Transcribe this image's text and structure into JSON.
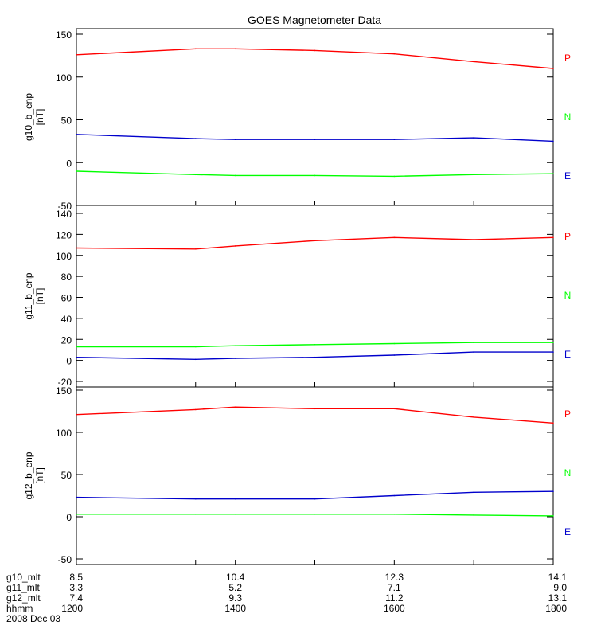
{
  "chart_data": {
    "type": "line",
    "title": "GOES Magnetometer Data",
    "time_hhmm": [
      1200,
      1330,
      1400,
      1500,
      1600,
      1700,
      1800
    ],
    "panels": [
      {
        "ylabel": "g10_b_enp",
        "yunit": "[nT]",
        "ylim": [
          -50,
          150
        ],
        "yticks": [
          -50,
          0,
          50,
          100,
          150
        ],
        "series": [
          {
            "name": "P",
            "color": "#ff0000",
            "values": [
              126,
              133,
              133,
              131,
              127,
              118,
              110
            ]
          },
          {
            "name": "N",
            "color": "#00ff00",
            "values": [
              -10,
              -14,
              -15,
              -15,
              -16,
              -14,
              -13
            ]
          },
          {
            "name": "E",
            "color": "#0000cc",
            "values": [
              33,
              28,
              27,
              27,
              27,
              29,
              25
            ]
          }
        ]
      },
      {
        "ylabel": "g11_b_enp",
        "yunit": "[nT]",
        "ylim": [
          -20,
          140
        ],
        "yticks": [
          -20,
          0,
          20,
          40,
          60,
          80,
          100,
          120,
          140
        ],
        "series": [
          {
            "name": "P",
            "color": "#ff0000",
            "values": [
              107,
              106,
              109,
              114,
              117,
              115,
              117
            ]
          },
          {
            "name": "N",
            "color": "#00ff00",
            "values": [
              13,
              13,
              14,
              15,
              16,
              17,
              17
            ]
          },
          {
            "name": "E",
            "color": "#0000cc",
            "values": [
              3,
              1,
              2,
              3,
              5,
              8,
              8
            ]
          }
        ]
      },
      {
        "ylabel": "g12_b_enp",
        "yunit": "[nT]",
        "ylim": [
          -50,
          150
        ],
        "yticks": [
          -50,
          0,
          50,
          100,
          150
        ],
        "series": [
          {
            "name": "P",
            "color": "#ff0000",
            "values": [
              121,
              127,
              130,
              128,
              128,
              118,
              111
            ]
          },
          {
            "name": "N",
            "color": "#00ff00",
            "values": [
              3,
              3,
              3,
              3,
              3,
              2,
              1
            ]
          },
          {
            "name": "E",
            "color": "#0000cc",
            "values": [
              23,
              21,
              21,
              21,
              25,
              29,
              30
            ]
          }
        ]
      }
    ],
    "series_labels": [
      {
        "text": "P",
        "color": "#ff0000"
      },
      {
        "text": "N",
        "color": "#00ff00"
      },
      {
        "text": "E",
        "color": "#0000cc"
      }
    ],
    "xaxis": {
      "rows": [
        {
          "label": "g10_mlt",
          "values": [
            "8.5",
            "10.4",
            "12.3",
            "14.1"
          ]
        },
        {
          "label": "g11_mlt",
          "values": [
            "3.3",
            "5.2",
            "7.1",
            "9.0"
          ]
        },
        {
          "label": "g12_mlt",
          "values": [
            "7.4",
            "9.3",
            "11.2",
            "13.1"
          ]
        },
        {
          "label": "hhmm",
          "values": [
            "1200",
            "1400",
            "1600",
            "1800"
          ]
        }
      ],
      "date": "2008 Dec 03"
    }
  }
}
